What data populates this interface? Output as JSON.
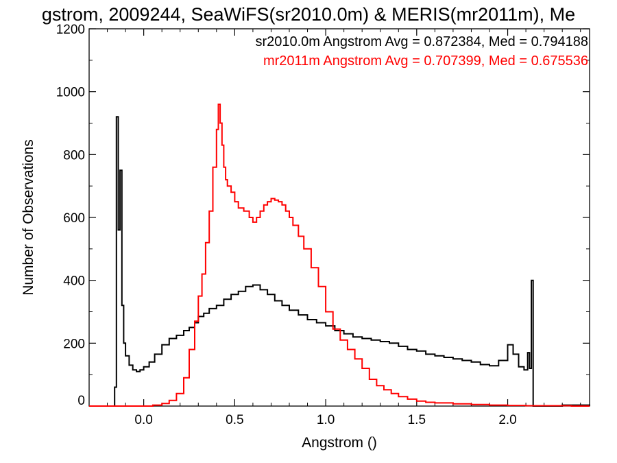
{
  "chart_data": {
    "type": "line",
    "title": "gstrom, 2009244, SeaWiFS(sr2010.0m) & MERIS(mr2011m), Me",
    "xlabel": "Angstrom ()",
    "ylabel": "Number of Observations",
    "xlim": [
      -0.3,
      2.45
    ],
    "ylim": [
      0,
      1200
    ],
    "xticks": [
      "0.0",
      "0.5",
      "1.0",
      "1.5",
      "2.0"
    ],
    "xtick_values": [
      0.0,
      0.5,
      1.0,
      1.5,
      2.0
    ],
    "yticks": [
      "0",
      "200",
      "400",
      "600",
      "800",
      "1000",
      "1200"
    ],
    "ytick_values": [
      0,
      200,
      400,
      600,
      800,
      1000,
      1200
    ],
    "grid": false,
    "legend_placement": "top-right",
    "legend": [
      {
        "text": "sr2010.0m Angstrom Avg = 0.872384, Med = 0.794188",
        "color": "#000000"
      },
      {
        "text": "mr2011m Angstrom Avg = 0.707399, Med = 0.675536",
        "color": "#ff0000"
      }
    ],
    "series": [
      {
        "color": "#000000",
        "x": [
          -0.3,
          -0.16,
          -0.15,
          -0.14,
          -0.13,
          -0.12,
          -0.11,
          -0.1,
          -0.08,
          -0.06,
          -0.04,
          -0.02,
          0.0,
          0.03,
          0.06,
          0.1,
          0.14,
          0.18,
          0.22,
          0.25,
          0.28,
          0.3,
          0.33,
          0.36,
          0.4,
          0.44,
          0.48,
          0.52,
          0.56,
          0.6,
          0.64,
          0.68,
          0.72,
          0.76,
          0.8,
          0.85,
          0.9,
          0.95,
          1.0,
          1.05,
          1.1,
          1.15,
          1.2,
          1.25,
          1.3,
          1.35,
          1.4,
          1.45,
          1.5,
          1.55,
          1.6,
          1.65,
          1.7,
          1.75,
          1.8,
          1.85,
          1.9,
          1.95,
          2.0,
          2.03,
          2.06,
          2.09,
          2.11,
          2.12,
          2.13,
          2.14,
          2.15,
          2.2,
          2.3,
          2.45
        ],
        "y": [
          0,
          60,
          920,
          560,
          750,
          320,
          200,
          160,
          130,
          115,
          110,
          115,
          125,
          140,
          165,
          195,
          215,
          225,
          240,
          250,
          265,
          285,
          295,
          310,
          320,
          340,
          355,
          365,
          380,
          385,
          370,
          355,
          335,
          320,
          305,
          290,
          275,
          265,
          255,
          240,
          230,
          220,
          215,
          210,
          205,
          200,
          190,
          180,
          175,
          165,
          160,
          155,
          150,
          145,
          140,
          132,
          128,
          145,
          195,
          165,
          125,
          115,
          170,
          120,
          400,
          0,
          0,
          0,
          3,
          0
        ]
      },
      {
        "color": "#ff0000",
        "x": [
          -0.3,
          0.0,
          0.05,
          0.1,
          0.14,
          0.18,
          0.22,
          0.25,
          0.28,
          0.3,
          0.32,
          0.34,
          0.36,
          0.38,
          0.4,
          0.41,
          0.42,
          0.43,
          0.44,
          0.45,
          0.46,
          0.48,
          0.5,
          0.52,
          0.55,
          0.58,
          0.6,
          0.62,
          0.64,
          0.66,
          0.68,
          0.7,
          0.72,
          0.74,
          0.76,
          0.78,
          0.8,
          0.82,
          0.85,
          0.88,
          0.92,
          0.96,
          1.0,
          1.04,
          1.08,
          1.12,
          1.16,
          1.2,
          1.24,
          1.28,
          1.32,
          1.36,
          1.4,
          1.45,
          1.5,
          1.55,
          1.6,
          1.7,
          1.8,
          1.9,
          2.0,
          2.1,
          2.2,
          2.35,
          2.45
        ],
        "y": [
          0,
          0,
          3,
          8,
          18,
          40,
          90,
          180,
          270,
          350,
          420,
          520,
          620,
          760,
          880,
          960,
          900,
          830,
          760,
          720,
          700,
          680,
          650,
          630,
          620,
          600,
          585,
          600,
          620,
          640,
          650,
          660,
          655,
          650,
          640,
          620,
          600,
          575,
          540,
          500,
          440,
          380,
          300,
          245,
          210,
          180,
          150,
          120,
          85,
          65,
          52,
          40,
          30,
          22,
          16,
          12,
          10,
          7,
          5,
          3,
          2,
          1,
          1,
          0,
          0
        ]
      }
    ]
  }
}
